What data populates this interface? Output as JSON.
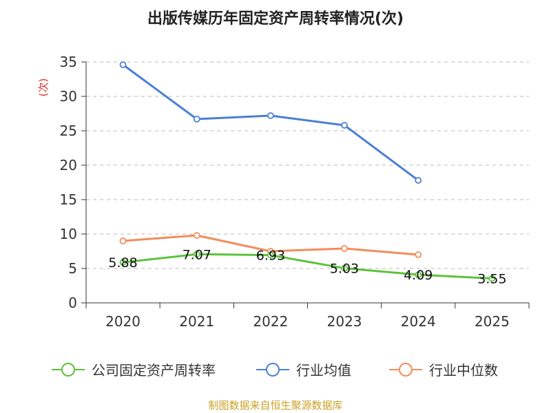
{
  "chart_data": {
    "type": "line",
    "title": "出版传媒历年固定资产周转率情况(次)",
    "ylabel": "(次)",
    "xlabel": "",
    "ylim": [
      0,
      35
    ],
    "yticks": [
      0,
      5,
      10,
      15,
      20,
      25,
      30,
      35
    ],
    "categories": [
      "2020",
      "2021",
      "2022",
      "2023",
      "2024",
      "2025"
    ],
    "grid": true,
    "legend_position": "bottom",
    "series": [
      {
        "name": "公司固定资产周转率",
        "color": "#5cc23a",
        "values": [
          5.88,
          7.07,
          6.93,
          5.03,
          4.09,
          3.55
        ],
        "labels": [
          "5.88",
          "7.07",
          "6.93",
          "5.03",
          "4.09",
          "3.55"
        ]
      },
      {
        "name": "行业均值",
        "color": "#4a7fd6",
        "values": [
          34.6,
          26.7,
          27.2,
          25.8,
          17.8,
          null
        ]
      },
      {
        "name": "行业中位数",
        "color": "#f28c5a",
        "values": [
          9.0,
          9.8,
          7.5,
          7.9,
          7.0,
          null
        ]
      }
    ]
  },
  "source": "制图数据来自恒生聚源数据库"
}
